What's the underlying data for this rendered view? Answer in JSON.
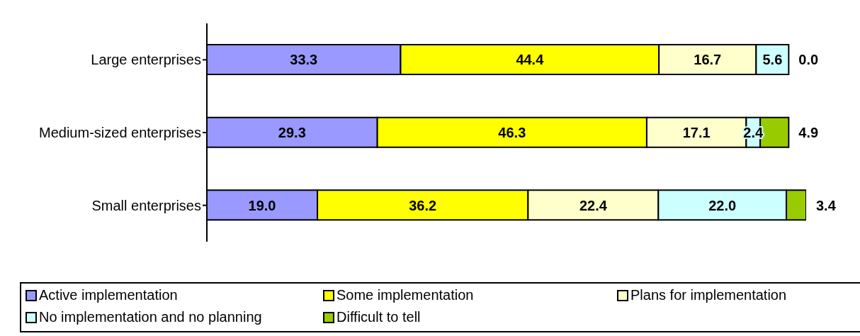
{
  "chart_data": {
    "type": "bar",
    "orientation": "horizontal",
    "stacked": true,
    "categories": [
      "Large enterprises",
      "Medium-sized enterprises",
      "Small enterprises"
    ],
    "series": [
      {
        "name": "Active implementation",
        "color": "#9999ff",
        "values": [
          33.3,
          29.3,
          19.0
        ],
        "value_labels": [
          "33.3",
          "29.3",
          "19.0"
        ]
      },
      {
        "name": "Some implementation",
        "color": "#ffff00",
        "values": [
          44.4,
          46.3,
          36.2
        ],
        "value_labels": [
          "44.4",
          "46.3",
          "36.2"
        ]
      },
      {
        "name": "Plans for implementation",
        "color": "#ffffcc",
        "values": [
          16.7,
          17.1,
          22.4
        ],
        "value_labels": [
          "16.7",
          "17.1",
          "22.4"
        ]
      },
      {
        "name": "No implementation and no planning",
        "color": "#ccffff",
        "values": [
          5.6,
          2.4,
          22.0
        ],
        "value_labels": [
          "5.6",
          "2.4",
          "22.0"
        ]
      },
      {
        "name": "Difficult to tell",
        "color": "#99cc00",
        "values": [
          0.0,
          4.9,
          3.4
        ],
        "value_labels": [
          "0.0",
          "4.9",
          "3.4"
        ]
      }
    ],
    "legend": "bottom",
    "tick_labels": "y"
  }
}
